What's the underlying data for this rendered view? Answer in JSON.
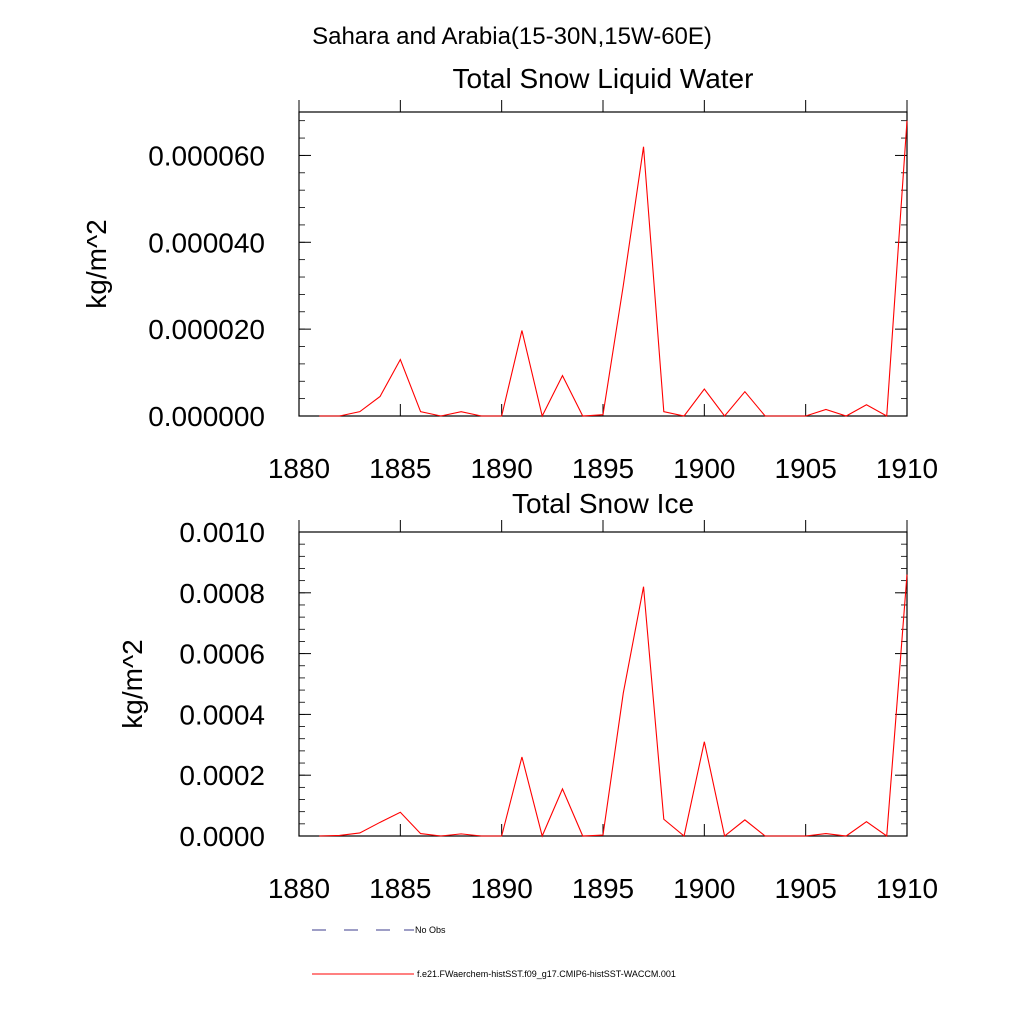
{
  "figure": {
    "suptitle": "Sahara and Arabia(15-30N,15W-60E)"
  },
  "colors": {
    "series_line": "#ff0000",
    "obs_line": "#3c3c8c",
    "axis": "#000000"
  },
  "chart_data": [
    {
      "type": "line",
      "title": "Total Snow Liquid Water",
      "xlabel": "",
      "ylabel": "kg/m^2",
      "xlim": [
        1880,
        1910
      ],
      "ylim": [
        0,
        7e-05
      ],
      "xticks": [
        1880,
        1885,
        1890,
        1895,
        1900,
        1905,
        1910
      ],
      "xtick_labels": [
        "1880",
        "1885",
        "1890",
        "1895",
        "1900",
        "1905",
        "1910"
      ],
      "yticks": [
        0,
        2e-05,
        4e-05,
        6e-05
      ],
      "ytick_labels": [
        "0.000000",
        "0.000020",
        "0.000040",
        "0.000060"
      ],
      "grid": false,
      "x": [
        1881,
        1882,
        1883,
        1884,
        1885,
        1886,
        1887,
        1888,
        1889,
        1890,
        1891,
        1892,
        1893,
        1894,
        1895,
        1896,
        1897,
        1898,
        1899,
        1900,
        1901,
        1902,
        1903,
        1904,
        1905,
        1906,
        1907,
        1908,
        1909,
        1910
      ],
      "series": [
        {
          "name": "f.e21.FWaerchem-histSST.f09_g17.CMIP6-histSST-WACCM.001",
          "values": [
            0,
            0,
            1e-06,
            4.5e-06,
            1.3e-05,
            1e-06,
            0,
            1e-06,
            0,
            0,
            1.97e-05,
            0,
            9.3e-06,
            0,
            3e-07,
            3e-05,
            6.2e-05,
            1e-06,
            0,
            6.2e-06,
            0,
            5.6e-06,
            0,
            0,
            0,
            1.5e-06,
            0,
            2.6e-06,
            0,
            6.8e-05
          ]
        }
      ]
    },
    {
      "type": "line",
      "title": "Total Snow Ice",
      "xlabel": "",
      "ylabel": "kg/m^2",
      "xlim": [
        1880,
        1910
      ],
      "ylim": [
        0,
        0.001
      ],
      "xticks": [
        1880,
        1885,
        1890,
        1895,
        1900,
        1905,
        1910
      ],
      "xtick_labels": [
        "1880",
        "1885",
        "1890",
        "1895",
        "1900",
        "1905",
        "1910"
      ],
      "yticks": [
        0,
        0.0002,
        0.0004,
        0.0006,
        0.0008,
        0.001
      ],
      "ytick_labels": [
        "0.0000",
        "0.0002",
        "0.0004",
        "0.0006",
        "0.0008",
        "0.0010"
      ],
      "grid": false,
      "x": [
        1881,
        1882,
        1883,
        1884,
        1885,
        1886,
        1887,
        1888,
        1889,
        1890,
        1891,
        1892,
        1893,
        1894,
        1895,
        1896,
        1897,
        1898,
        1899,
        1900,
        1901,
        1902,
        1903,
        1904,
        1905,
        1906,
        1907,
        1908,
        1909,
        1910
      ],
      "series": [
        {
          "name": "f.e21.FWaerchem-histSST.f09_g17.CMIP6-histSST-WACCM.001",
          "values": [
            0,
            2e-06,
            1e-05,
            4.5e-05,
            7.8e-05,
            8e-06,
            0,
            7e-06,
            0,
            0,
            0.00026,
            0,
            0.000155,
            0,
            3e-06,
            0.00047,
            0.00082,
            5.5e-05,
            0,
            0.00031,
            0,
            5.3e-05,
            0,
            0,
            0,
            8e-06,
            0,
            4.7e-05,
            0,
            0.00086
          ]
        }
      ]
    }
  ],
  "legend": {
    "placement": "bottom",
    "entries": [
      {
        "label": "No Obs",
        "style": "dashed"
      },
      {
        "label": "f.e21.FWaerchem-histSST.f09_g17.CMIP6-histSST-WACCM.001",
        "style": "solid"
      }
    ]
  }
}
